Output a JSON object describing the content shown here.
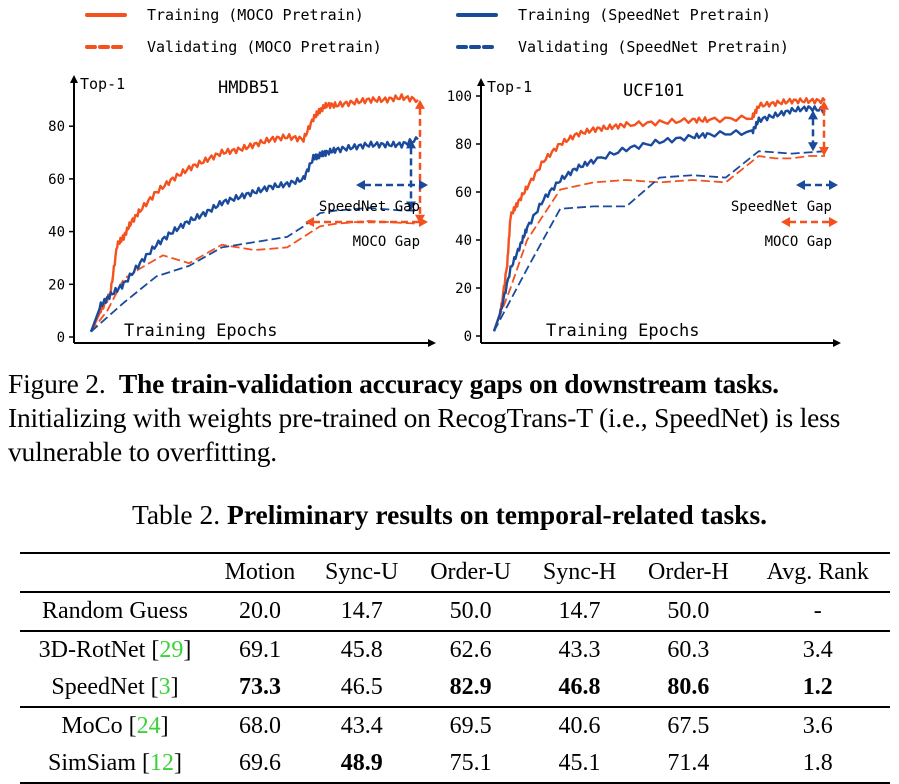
{
  "legend": {
    "items": [
      {
        "label": "Training (MOCO Pretrain)",
        "style": "solid",
        "color": "#f4511e"
      },
      {
        "label": "Validating (MOCO Pretrain)",
        "style": "dashed",
        "color": "#f4511e"
      },
      {
        "label": "Training (SpeedNet Pretrain)",
        "style": "solid",
        "color": "#1a4a9c"
      },
      {
        "label": "Validating (SpeedNet Pretrain)",
        "style": "dashed",
        "color": "#1a4a9c"
      }
    ]
  },
  "chart_data": [
    {
      "type": "line",
      "title": "HMDB51",
      "xlabel": "Training Epochs",
      "ylabel": "Top-1",
      "ylim": [
        0,
        90
      ],
      "yticks": [
        0,
        20,
        40,
        60,
        80
      ],
      "grid": false,
      "x_unit": "fraction of training",
      "series": [
        {
          "name": "Training (MOCO Pretrain)",
          "color": "#f4511e",
          "style": "solid",
          "x": [
            0,
            0.03,
            0.06,
            0.08,
            0.1,
            0.12,
            0.15,
            0.2,
            0.25,
            0.3,
            0.35,
            0.4,
            0.45,
            0.5,
            0.55,
            0.6,
            0.65,
            0.68,
            0.7,
            0.72,
            0.75,
            0.8,
            0.85,
            0.9,
            0.95,
            1.0
          ],
          "y": [
            2,
            10,
            17,
            35,
            38,
            43,
            48,
            55,
            60,
            64,
            67,
            70,
            71,
            73,
            75,
            76,
            75,
            83,
            86,
            88,
            88,
            89,
            90,
            90,
            91,
            90
          ]
        },
        {
          "name": "Validating (MOCO Pretrain)",
          "color": "#f4511e",
          "style": "dashed",
          "x": [
            0,
            0.05,
            0.1,
            0.15,
            0.22,
            0.3,
            0.4,
            0.5,
            0.6,
            0.7,
            0.75,
            0.85,
            1.0
          ],
          "y": [
            2,
            10,
            22,
            26,
            31,
            28,
            35,
            33,
            34,
            42,
            43,
            44,
            43
          ]
        },
        {
          "name": "Training (SpeedNet Pretrain)",
          "color": "#1a4a9c",
          "style": "solid",
          "x": [
            0,
            0.03,
            0.06,
            0.1,
            0.15,
            0.2,
            0.25,
            0.3,
            0.35,
            0.4,
            0.45,
            0.5,
            0.55,
            0.6,
            0.65,
            0.68,
            0.7,
            0.72,
            0.75,
            0.8,
            0.85,
            0.9,
            0.95,
            1.0
          ],
          "y": [
            2,
            12,
            16,
            20,
            28,
            35,
            40,
            44,
            47,
            51,
            53,
            55,
            57,
            58,
            60,
            68,
            69,
            70,
            71,
            72,
            73,
            73,
            73,
            75
          ]
        },
        {
          "name": "Validating (SpeedNet Pretrain)",
          "color": "#1a4a9c",
          "style": "dashed",
          "x": [
            0,
            0.1,
            0.2,
            0.3,
            0.4,
            0.5,
            0.6,
            0.65,
            0.7,
            0.75,
            0.85,
            0.95,
            1.0
          ],
          "y": [
            2,
            13,
            23,
            27,
            34,
            36,
            38,
            42,
            47,
            48,
            49,
            48,
            48
          ]
        }
      ],
      "annotations": [
        {
          "text": "SpeedNet Gap",
          "color": "#1a4a9c"
        },
        {
          "text": "MOCO Gap",
          "color": "#f4511e"
        }
      ]
    },
    {
      "type": "line",
      "title": "UCF101",
      "xlabel": "Training Epochs",
      "ylabel": "Top-1",
      "ylim": [
        0,
        100
      ],
      "yticks": [
        0,
        20,
        40,
        60,
        80,
        100
      ],
      "grid": false,
      "x_unit": "fraction of training",
      "series": [
        {
          "name": "Training (MOCO Pretrain)",
          "color": "#f4511e",
          "style": "solid",
          "x": [
            0,
            0.02,
            0.04,
            0.05,
            0.07,
            0.1,
            0.15,
            0.2,
            0.25,
            0.3,
            0.35,
            0.4,
            0.5,
            0.6,
            0.65,
            0.78,
            0.8,
            0.85,
            0.9,
            0.95,
            1.0
          ],
          "y": [
            2,
            10,
            30,
            50,
            55,
            62,
            73,
            80,
            84,
            86,
            87,
            88,
            89,
            90,
            90,
            91,
            96,
            97,
            98,
            98,
            98
          ]
        },
        {
          "name": "Validating (MOCO Pretrain)",
          "color": "#f4511e",
          "style": "dashed",
          "x": [
            0,
            0.05,
            0.1,
            0.2,
            0.3,
            0.4,
            0.5,
            0.6,
            0.7,
            0.8,
            0.85,
            0.9,
            0.95,
            1.0
          ],
          "y": [
            2,
            20,
            40,
            61,
            64,
            65,
            64,
            65,
            64,
            75,
            74,
            74,
            75,
            75
          ]
        },
        {
          "name": "Training (SpeedNet Pretrain)",
          "color": "#1a4a9c",
          "style": "solid",
          "x": [
            0,
            0.02,
            0.05,
            0.08,
            0.1,
            0.15,
            0.2,
            0.25,
            0.3,
            0.4,
            0.5,
            0.6,
            0.65,
            0.78,
            0.8,
            0.85,
            0.9,
            0.95,
            1.0
          ],
          "y": [
            2,
            10,
            28,
            38,
            45,
            57,
            65,
            70,
            73,
            78,
            81,
            83,
            84,
            85,
            90,
            92,
            94,
            95,
            94
          ]
        },
        {
          "name": "Validating (SpeedNet Pretrain)",
          "color": "#1a4a9c",
          "style": "dashed",
          "x": [
            0,
            0.1,
            0.2,
            0.3,
            0.4,
            0.5,
            0.6,
            0.7,
            0.8,
            0.9,
            1.0
          ],
          "y": [
            2,
            28,
            53,
            54,
            54,
            66,
            67,
            66,
            77,
            76,
            77
          ]
        }
      ],
      "annotations": [
        {
          "text": "SpeedNet Gap",
          "color": "#1a4a9c"
        },
        {
          "text": "MOCO Gap",
          "color": "#f4511e"
        }
      ]
    },
    {
      "type": "table",
      "title": "Table 2. Preliminary results on temporal-related tasks.",
      "columns": [
        "",
        "Motion",
        "Sync-U",
        "Order-U",
        "Sync-H",
        "Order-H",
        "Avg. Rank"
      ],
      "rows": [
        [
          "Random Guess",
          "20.0",
          "14.7",
          "50.0",
          "14.7",
          "50.0",
          "-"
        ],
        [
          "3D-RotNet [29]",
          "69.1",
          "45.8",
          "62.6",
          "43.3",
          "60.3",
          "3.4"
        ],
        [
          "SpeedNet [3]",
          "73.3",
          "46.5",
          "82.9",
          "46.8",
          "80.6",
          "1.2"
        ],
        [
          "MoCo [24]",
          "68.0",
          "43.4",
          "69.5",
          "40.6",
          "67.5",
          "3.6"
        ],
        [
          "SimSiam [12]",
          "69.6",
          "48.9",
          "75.1",
          "45.1",
          "71.4",
          "1.8"
        ]
      ]
    }
  ],
  "figure_caption": {
    "label": "Figure 2.",
    "bold": "The train-validation accuracy gaps on downstream tasks.",
    "text": "Initializing with weights pre-trained on RecogTrans-T (i.e., SpeedNet) is less vulnerable to overfitting."
  },
  "table_caption": {
    "label": "Table 2.",
    "bold": "Preliminary results on temporal-related tasks."
  },
  "table": {
    "header": [
      "",
      "Motion",
      "Sync-U",
      "Order-U",
      "Sync-H",
      "Order-H",
      "Avg. Rank"
    ],
    "rows": [
      {
        "method": "Random Guess",
        "ref": "",
        "values": [
          "20.0",
          "14.7",
          "50.0",
          "14.7",
          "50.0",
          "-"
        ],
        "bold": [
          false,
          false,
          false,
          false,
          false,
          false
        ]
      },
      {
        "method": "3D-RotNet ",
        "ref": "29",
        "values": [
          "69.1",
          "45.8",
          "62.6",
          "43.3",
          "60.3",
          "3.4"
        ],
        "bold": [
          false,
          false,
          false,
          false,
          false,
          false
        ]
      },
      {
        "method": "SpeedNet ",
        "ref": "3",
        "values": [
          "73.3",
          "46.5",
          "82.9",
          "46.8",
          "80.6",
          "1.2"
        ],
        "bold": [
          true,
          false,
          true,
          true,
          true,
          true
        ]
      },
      {
        "method": "MoCo ",
        "ref": "24",
        "values": [
          "68.0",
          "43.4",
          "69.5",
          "40.6",
          "67.5",
          "3.6"
        ],
        "bold": [
          false,
          false,
          false,
          false,
          false,
          false
        ]
      },
      {
        "method": "SimSiam ",
        "ref": "12",
        "values": [
          "69.6",
          "48.9",
          "75.1",
          "45.1",
          "71.4",
          "1.8"
        ],
        "bold": [
          false,
          true,
          false,
          false,
          false,
          false
        ]
      }
    ]
  }
}
